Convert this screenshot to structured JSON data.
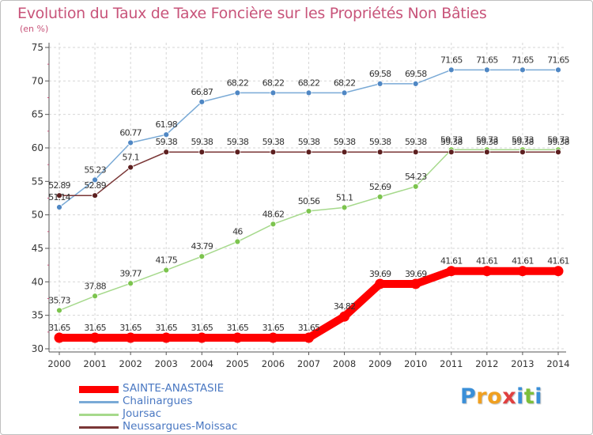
{
  "header": {
    "title": "Evolution du Taux de Taxe Foncière sur les Propriétés Non Bâties",
    "unit": "(en %)"
  },
  "chart_data": {
    "type": "line",
    "title": "Evolution du Taux de Taxe Foncière sur les Propriétés Non Bâties",
    "ylabel": "(en %)",
    "xlabel": "",
    "ylim": [
      30,
      75
    ],
    "yticks": [
      30,
      35,
      40,
      45,
      50,
      55,
      60,
      65,
      70,
      75
    ],
    "grid": true,
    "legend_position": "bottom-left",
    "categories": [
      "2000",
      "2001",
      "2002",
      "2003",
      "2004",
      "2005",
      "2006",
      "2007",
      "2008",
      "2009",
      "2010",
      "2011",
      "2012",
      "2013",
      "2014"
    ],
    "series": [
      {
        "name": "Chalinargues",
        "color": "#7aaad6",
        "marker": "#4f87c4",
        "values": [
          51.14,
          55.23,
          60.77,
          61.98,
          66.87,
          68.22,
          68.22,
          68.22,
          68.22,
          69.58,
          69.58,
          71.65,
          71.65,
          71.65,
          71.65
        ],
        "labels": [
          "51.14",
          "55.23",
          "60.77",
          "61.98",
          "66.87",
          "68.22",
          "68.22",
          "68.22",
          "68.22",
          "69.58",
          "69.58",
          "71.65",
          "71.65",
          "71.65",
          "71.65"
        ]
      },
      {
        "name": "Joursac",
        "color": "#a6d98c",
        "marker": "#7cc44e",
        "values": [
          35.73,
          37.88,
          39.77,
          41.75,
          43.79,
          46,
          48.62,
          50.56,
          51.1,
          52.69,
          54.23,
          59.73,
          59.73,
          59.73,
          59.73
        ],
        "labels": [
          "35.73",
          "37.88",
          "39.77",
          "41.75",
          "43.79",
          "46",
          "48.62",
          "50.56",
          "51.1",
          "52.69",
          "54.23",
          "59.73",
          "59.73",
          "59.73",
          "59.73"
        ]
      },
      {
        "name": "Neussargues-Moissac",
        "color": "#7a3636",
        "marker": "#5c1f1f",
        "values": [
          52.89,
          52.89,
          57.1,
          59.38,
          59.38,
          59.38,
          59.38,
          59.38,
          59.38,
          59.38,
          59.38,
          59.38,
          59.38,
          59.38,
          59.38
        ],
        "labels": [
          "52.89",
          "52.89",
          "57.1",
          "59.38",
          "59.38",
          "59.38",
          "59.38",
          "59.38",
          "59.38",
          "59.38",
          "59.38",
          "59.38",
          "59.38",
          "59.38",
          "59.38"
        ]
      },
      {
        "name": "SAINTE-ANASTASIE",
        "color": "#ff0000",
        "marker": "#ff0000",
        "values": [
          31.65,
          31.65,
          31.65,
          31.65,
          31.65,
          31.65,
          31.65,
          31.65,
          34.82,
          39.69,
          39.69,
          41.61,
          41.61,
          41.61,
          41.61
        ],
        "labels": [
          "31.65",
          "31.65",
          "31.65",
          "31.65",
          "31.65",
          "31.65",
          "31.65",
          "31.65",
          "34.82",
          "39.69",
          "39.69",
          "41.61",
          "41.61",
          "41.61",
          "41.61"
        ]
      }
    ]
  },
  "legend": {
    "items": [
      {
        "label": "SAINTE-ANASTASIE",
        "color": "#ff0000"
      },
      {
        "label": "Chalinargues",
        "color": "#7aaad6"
      },
      {
        "label": "Joursac",
        "color": "#a6d98c"
      },
      {
        "label": "Neussargues-Moissac",
        "color": "#7a3636"
      }
    ]
  },
  "logo": {
    "letters": [
      "P",
      "r",
      "o",
      "x",
      "i",
      "t",
      "i"
    ],
    "colors": [
      "#3a8fd8",
      "#f0a020",
      "#f0a020",
      "#e04040",
      "#3a8fd8",
      "#7cbf3a",
      "#3a8fd8"
    ]
  }
}
